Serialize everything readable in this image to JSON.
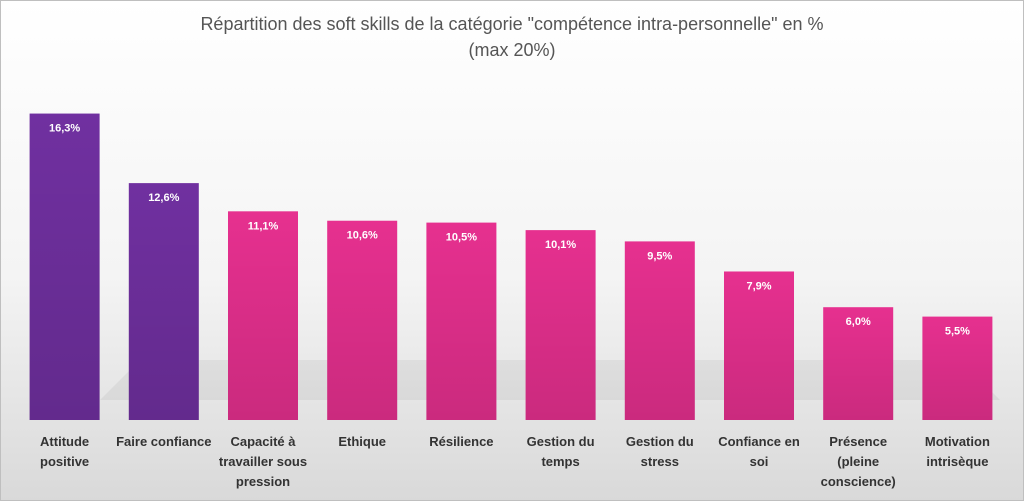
{
  "chart_data": {
    "type": "bar",
    "title": "Répartition des soft skills de la catégorie \"compétence intra-personnelle\" en %",
    "subtitle": "(max 20%)",
    "categories": [
      "Attitude positive",
      "Faire confiance",
      "Capacité à travailler sous pression",
      "Ethique",
      "Résilience",
      "Gestion du temps",
      "Gestion du stress",
      "Confiance en soi",
      "Présence (pleine conscience)",
      "Motivation intrisèque"
    ],
    "values": [
      16.3,
      12.6,
      11.1,
      10.6,
      10.5,
      10.1,
      9.5,
      7.9,
      6.0,
      5.5
    ],
    "value_labels": [
      "16,3%",
      "12,6%",
      "11,1%",
      "10,6%",
      "10,5%",
      "10,1%",
      "9,5%",
      "7,9%",
      "6,0%",
      "5,5%"
    ],
    "colors": [
      "#7030a0",
      "#7030a0",
      "#e6308f",
      "#e6308f",
      "#e6308f",
      "#e6308f",
      "#e6308f",
      "#e6308f",
      "#e6308f",
      "#e6308f"
    ],
    "ylim": [
      0,
      20
    ]
  }
}
